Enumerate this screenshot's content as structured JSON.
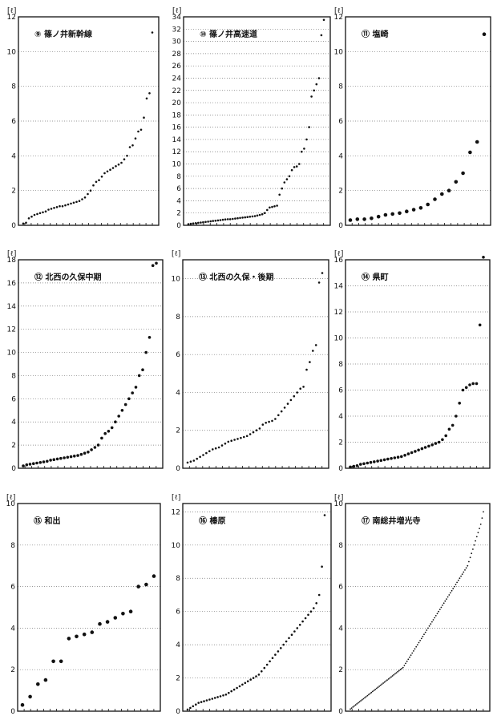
{
  "unit_label": "[ℓ]",
  "chart_data": [
    {
      "type": "scatter",
      "title": "⑨ 篠ノ井新幹線",
      "ylim": [
        0,
        12
      ],
      "yticks": [
        0,
        2,
        4,
        6,
        8,
        10,
        12
      ],
      "y_unit": "[ℓ]",
      "marker": "small",
      "grid": "horizontal-dotted",
      "values": [
        0.1,
        0.15,
        0.4,
        0.5,
        0.6,
        0.65,
        0.7,
        0.75,
        0.8,
        0.9,
        0.95,
        1.0,
        1.05,
        1.1,
        1.1,
        1.15,
        1.2,
        1.25,
        1.3,
        1.35,
        1.4,
        1.5,
        1.6,
        1.8,
        2.0,
        2.3,
        2.5,
        2.6,
        2.8,
        3.0,
        3.1,
        3.2,
        3.3,
        3.4,
        3.5,
        3.6,
        3.8,
        4.0,
        4.5,
        4.6,
        5.0,
        5.4,
        5.5,
        6.2,
        7.3,
        7.6,
        11.1
      ]
    },
    {
      "type": "scatter",
      "title": "⑩ 篠ノ井高速道",
      "ylim": [
        0,
        34
      ],
      "yticks": [
        0,
        2,
        4,
        6,
        8,
        10,
        12,
        14,
        16,
        18,
        20,
        22,
        24,
        26,
        28,
        30,
        32,
        34
      ],
      "y_unit": "[ℓ]",
      "marker": "small",
      "grid": "horizontal-dotted",
      "values": [
        0.2,
        0.25,
        0.3,
        0.35,
        0.4,
        0.45,
        0.5,
        0.55,
        0.6,
        0.65,
        0.7,
        0.75,
        0.8,
        0.85,
        0.9,
        0.95,
        1.0,
        1.0,
        1.05,
        1.1,
        1.15,
        1.2,
        1.25,
        1.3,
        1.35,
        1.4,
        1.45,
        1.5,
        1.6,
        1.7,
        1.8,
        2.0,
        2.5,
        2.9,
        3.0,
        3.1,
        3.2,
        5.0,
        6.0,
        7.0,
        7.5,
        8.0,
        9.0,
        9.5,
        9.6,
        10.0,
        12.0,
        12.5,
        14.0,
        16.0,
        21.0,
        22.0,
        23.0,
        24.0,
        31.0,
        33.5
      ]
    },
    {
      "type": "scatter",
      "title": "⑪ 塩崎",
      "ylim": [
        0,
        12
      ],
      "yticks": [
        0,
        2,
        4,
        6,
        8,
        10,
        12
      ],
      "y_unit": "[ℓ]",
      "marker": "large",
      "grid": "horizontal-dotted",
      "values": [
        0.3,
        0.35,
        0.35,
        0.4,
        0.5,
        0.6,
        0.65,
        0.7,
        0.8,
        0.9,
        1.0,
        1.2,
        1.5,
        1.8,
        2.0,
        2.5,
        3.0,
        4.2,
        4.8,
        11.0
      ]
    },
    {
      "type": "scatter",
      "title": "⑫ 北西の久保中期",
      "ylim": [
        0,
        18
      ],
      "yticks": [
        0,
        2,
        4,
        6,
        8,
        10,
        12,
        14,
        16,
        18
      ],
      "y_unit": "[ℓ]",
      "marker": "medium",
      "grid": "horizontal-dotted",
      "values": [
        0.2,
        0.3,
        0.35,
        0.4,
        0.45,
        0.5,
        0.55,
        0.6,
        0.7,
        0.75,
        0.8,
        0.85,
        0.9,
        0.95,
        1.0,
        1.05,
        1.1,
        1.2,
        1.3,
        1.4,
        1.6,
        1.8,
        2.0,
        2.6,
        3.0,
        3.2,
        3.5,
        4.0,
        4.5,
        5.0,
        5.5,
        6.0,
        6.5,
        7.0,
        8.0,
        8.5,
        10.0,
        11.3,
        17.5,
        17.7
      ]
    },
    {
      "type": "scatter",
      "title": "⑬ 北西の久保・後期",
      "ylim": [
        0,
        11
      ],
      "yticks": [
        0,
        2,
        4,
        6,
        8,
        10
      ],
      "y_unit": "[ℓ]",
      "marker": "small",
      "grid": "horizontal-dotted",
      "values": [
        0.3,
        0.35,
        0.4,
        0.5,
        0.6,
        0.7,
        0.8,
        0.9,
        1.0,
        1.05,
        1.1,
        1.2,
        1.3,
        1.4,
        1.45,
        1.5,
        1.55,
        1.6,
        1.65,
        1.7,
        1.8,
        1.9,
        2.0,
        2.1,
        2.3,
        2.4,
        2.45,
        2.5,
        2.6,
        2.8,
        3.0,
        3.2,
        3.4,
        3.6,
        3.8,
        4.0,
        4.2,
        4.3,
        5.2,
        5.6,
        6.2,
        6.5,
        9.8,
        10.3
      ]
    },
    {
      "type": "scatter",
      "title": "⑭ 県町",
      "ylim": [
        0,
        16
      ],
      "yticks": [
        0,
        2,
        4,
        6,
        8,
        10,
        12,
        14,
        16
      ],
      "y_unit": "[ℓ]",
      "marker": "medium",
      "grid": "horizontal-dotted",
      "values": [
        0.1,
        0.15,
        0.2,
        0.3,
        0.35,
        0.4,
        0.45,
        0.5,
        0.55,
        0.6,
        0.65,
        0.7,
        0.75,
        0.8,
        0.85,
        0.9,
        1.0,
        1.1,
        1.2,
        1.3,
        1.4,
        1.5,
        1.6,
        1.7,
        1.8,
        1.9,
        2.0,
        2.2,
        2.5,
        3.0,
        3.3,
        4.0,
        5.0,
        6.0,
        6.2,
        6.4,
        6.5,
        6.5,
        11.0,
        16.2
      ]
    },
    {
      "type": "scatter",
      "title": "⑮ 和出",
      "ylim": [
        0,
        10
      ],
      "yticks": [
        0,
        2,
        4,
        6,
        8,
        10
      ],
      "y_unit": "[ℓ]",
      "marker": "large",
      "grid": "horizontal-dotted",
      "values": [
        0.3,
        0.7,
        1.3,
        1.5,
        2.4,
        2.4,
        3.5,
        3.6,
        3.7,
        3.8,
        4.2,
        4.3,
        4.5,
        4.7,
        4.8,
        6.0,
        6.1,
        6.5
      ]
    },
    {
      "type": "scatter",
      "title": "⑯ 榛原",
      "ylim": [
        0,
        12.5
      ],
      "yticks": [
        0,
        2,
        4,
        6,
        8,
        10,
        12
      ],
      "y_unit": "[ℓ]",
      "marker": "small",
      "grid": "horizontal-dotted",
      "values": [
        0.1,
        0.2,
        0.3,
        0.4,
        0.5,
        0.55,
        0.6,
        0.65,
        0.7,
        0.75,
        0.8,
        0.85,
        0.9,
        0.95,
        1.0,
        1.1,
        1.2,
        1.3,
        1.4,
        1.5,
        1.6,
        1.7,
        1.8,
        1.9,
        2.0,
        2.1,
        2.2,
        2.4,
        2.6,
        2.8,
        3.0,
        3.2,
        3.4,
        3.6,
        3.8,
        4.0,
        4.2,
        4.4,
        4.6,
        4.8,
        5.0,
        5.2,
        5.4,
        5.6,
        5.8,
        6.0,
        6.2,
        6.5,
        7.0,
        8.7,
        11.8
      ]
    },
    {
      "type": "scatter",
      "title": "⑰ 南総井増光寺",
      "ylim": [
        0,
        10
      ],
      "yticks": [
        0,
        2,
        4,
        6,
        8,
        10
      ],
      "y_unit": "[ℓ]",
      "marker": "tiny",
      "grid": "horizontal-dotted",
      "values": [
        0.1,
        0.15,
        0.2,
        0.25,
        0.3,
        0.35,
        0.4,
        0.45,
        0.5,
        0.55,
        0.6,
        0.65,
        0.7,
        0.75,
        0.8,
        0.85,
        0.9,
        0.95,
        1.0,
        1.05,
        1.1,
        1.15,
        1.2,
        1.25,
        1.3,
        1.35,
        1.4,
        1.45,
        1.5,
        1.55,
        1.6,
        1.65,
        1.7,
        1.75,
        1.8,
        1.85,
        1.9,
        1.95,
        2.0,
        2.05,
        2.1,
        2.2,
        2.3,
        2.4,
        2.5,
        2.6,
        2.7,
        2.8,
        2.9,
        3.0,
        3.1,
        3.2,
        3.3,
        3.4,
        3.5,
        3.6,
        3.7,
        3.8,
        3.9,
        4.0,
        4.1,
        4.2,
        4.3,
        4.4,
        4.5,
        4.6,
        4.7,
        4.8,
        4.9,
        5.0,
        5.1,
        5.2,
        5.3,
        5.4,
        5.5,
        5.6,
        5.7,
        5.8,
        5.9,
        6.0,
        6.1,
        6.2,
        6.3,
        6.4,
        6.5,
        6.6,
        6.7,
        6.8,
        6.9,
        7.0,
        7.2,
        7.4,
        7.6,
        7.8,
        8.0,
        8.2,
        8.4,
        8.6,
        8.8,
        9.0,
        9.3,
        9.6
      ]
    }
  ]
}
